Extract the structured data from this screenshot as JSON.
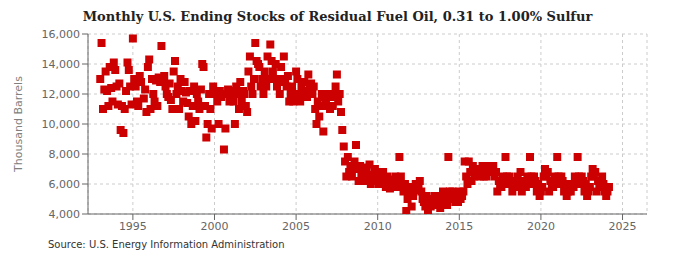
{
  "chart_data": {
    "type": "scatter",
    "title": "Monthly U.S. Ending Stocks of Residual Fuel Oil, 0.31 to 1.00% Sulfur",
    "y_label": "Thousand Barrels",
    "annotations": [
      "Source: U.S. Energy Information Administration"
    ],
    "color": "#cc0000",
    "marker": "square",
    "grid": true,
    "xlim": [
      1992.25,
      2026.5
    ],
    "xticks": [
      1995,
      2000,
      2005,
      2010,
      2015,
      2020,
      2025
    ],
    "ylim": [
      4000,
      16000
    ],
    "yticks": [
      {
        "value": 4000,
        "label": "4,000"
      },
      {
        "value": 6000,
        "label": "6,000"
      },
      {
        "value": 8000,
        "label": "8,000"
      },
      {
        "value": 10000,
        "label": "10,000"
      },
      {
        "value": 12000,
        "label": "12,000"
      },
      {
        "value": 14000,
        "label": "14,000"
      },
      {
        "value": 16000,
        "label": "16,000"
      }
    ],
    "x": [
      1993.0,
      1993.08,
      1993.17,
      1993.25,
      1993.33,
      1993.42,
      1993.5,
      1993.58,
      1993.67,
      1993.75,
      1993.83,
      1993.92,
      1994.0,
      1994.08,
      1994.17,
      1994.25,
      1994.33,
      1994.42,
      1994.5,
      1994.58,
      1994.67,
      1994.75,
      1994.83,
      1994.92,
      1995.0,
      1995.08,
      1995.17,
      1995.25,
      1995.33,
      1995.42,
      1995.5,
      1995.67,
      1995.75,
      1995.83,
      1995.92,
      1996.0,
      1996.08,
      1996.17,
      1996.25,
      1996.33,
      1996.42,
      1996.5,
      1996.58,
      1996.67,
      1996.75,
      1996.83,
      1996.92,
      1997.0,
      1997.08,
      1997.17,
      1997.25,
      1997.33,
      1997.42,
      1997.5,
      1997.58,
      1997.67,
      1997.75,
      1997.83,
      1997.92,
      1998.0,
      1998.08,
      1998.17,
      1998.25,
      1998.33,
      1998.42,
      1998.5,
      1998.58,
      1998.67,
      1998.75,
      1998.83,
      1998.92,
      1999.0,
      1999.08,
      1999.17,
      1999.25,
      1999.33,
      1999.42,
      1999.5,
      1999.58,
      1999.67,
      1999.75,
      1999.83,
      1999.92,
      2000.0,
      2000.08,
      2000.17,
      2000.25,
      2000.33,
      2000.42,
      2000.5,
      2000.58,
      2000.67,
      2000.75,
      2000.83,
      2000.92,
      2001.0,
      2001.08,
      2001.17,
      2001.25,
      2001.33,
      2001.42,
      2001.5,
      2001.58,
      2001.67,
      2001.75,
      2001.83,
      2001.92,
      2002.0,
      2002.08,
      2002.17,
      2002.25,
      2002.33,
      2002.42,
      2002.5,
      2002.58,
      2002.67,
      2002.75,
      2002.83,
      2002.92,
      2003.0,
      2003.08,
      2003.17,
      2003.25,
      2003.33,
      2003.42,
      2003.5,
      2003.58,
      2003.67,
      2003.75,
      2003.83,
      2003.92,
      2004.0,
      2004.08,
      2004.17,
      2004.25,
      2004.33,
      2004.42,
      2004.5,
      2004.58,
      2004.67,
      2004.75,
      2004.83,
      2004.92,
      2005.0,
      2005.08,
      2005.17,
      2005.25,
      2005.33,
      2005.42,
      2005.5,
      2005.58,
      2005.67,
      2005.75,
      2005.83,
      2005.92,
      2006.0,
      2006.08,
      2006.17,
      2006.25,
      2006.33,
      2006.42,
      2006.5,
      2006.58,
      2006.67,
      2006.75,
      2006.83,
      2006.92,
      2007.0,
      2007.08,
      2007.17,
      2007.25,
      2007.33,
      2007.42,
      2007.5,
      2007.58,
      2007.67,
      2007.75,
      2007.83,
      2007.92,
      2008.0,
      2008.08,
      2008.17,
      2008.25,
      2008.33,
      2008.42,
      2008.5,
      2008.58,
      2008.67,
      2008.75,
      2008.83,
      2008.92,
      2009.0,
      2009.08,
      2009.17,
      2009.25,
      2009.33,
      2009.42,
      2009.5,
      2009.58,
      2009.67,
      2009.75,
      2009.83,
      2009.92,
      2010.0,
      2010.08,
      2010.17,
      2010.25,
      2010.33,
      2010.42,
      2010.5,
      2010.58,
      2010.67,
      2010.75,
      2010.83,
      2010.92,
      2011.0,
      2011.08,
      2011.17,
      2011.25,
      2011.33,
      2011.42,
      2011.5,
      2011.58,
      2011.67,
      2011.75,
      2011.83,
      2011.92,
      2012.0,
      2012.08,
      2012.17,
      2012.25,
      2012.33,
      2012.42,
      2012.5,
      2012.58,
      2012.67,
      2012.75,
      2012.83,
      2012.92,
      2013.0,
      2013.08,
      2013.17,
      2013.25,
      2013.33,
      2013.42,
      2013.5,
      2013.58,
      2013.67,
      2013.75,
      2013.83,
      2013.92,
      2014.0,
      2014.08,
      2014.17,
      2014.25,
      2014.33,
      2014.42,
      2014.5,
      2014.58,
      2014.67,
      2014.75,
      2014.83,
      2014.92,
      2015.0,
      2015.08,
      2015.17,
      2015.25,
      2015.33,
      2015.42,
      2015.5,
      2015.58,
      2015.67,
      2015.75,
      2015.83,
      2015.92,
      2016.0,
      2016.08,
      2016.17,
      2016.25,
      2016.33,
      2016.42,
      2016.5,
      2016.58,
      2016.67,
      2016.75,
      2016.83,
      2016.92,
      2017.0,
      2017.08,
      2017.17,
      2017.25,
      2017.33,
      2017.42,
      2017.5,
      2017.58,
      2017.67,
      2017.75,
      2017.83,
      2017.92,
      2018.0,
      2018.08,
      2018.17,
      2018.25,
      2018.33,
      2018.42,
      2018.5,
      2018.58,
      2018.67,
      2018.75,
      2018.83,
      2018.92,
      2019.0,
      2019.08,
      2019.17,
      2019.25,
      2019.33,
      2019.42,
      2019.5,
      2019.58,
      2019.67,
      2019.75,
      2019.83,
      2019.92,
      2020.0,
      2020.08,
      2020.17,
      2020.25,
      2020.33,
      2020.42,
      2020.5,
      2020.58,
      2020.67,
      2020.75,
      2020.83,
      2020.92,
      2021.0,
      2021.08,
      2021.17,
      2021.25,
      2021.33,
      2021.42,
      2021.5,
      2021.58,
      2021.67,
      2021.75,
      2021.83,
      2021.92,
      2022.0,
      2022.08,
      2022.17,
      2022.25,
      2022.33,
      2022.42,
      2022.5,
      2022.58,
      2022.67,
      2022.75,
      2022.83,
      2022.92,
      2023.0,
      2023.08,
      2023.17,
      2023.25,
      2023.33,
      2023.42,
      2023.5,
      2023.58,
      2023.67,
      2023.75,
      2023.83,
      2023.92,
      2024.0,
      2024.08,
      2024.17
    ],
    "values": [
      13000,
      15400,
      11000,
      12300,
      13500,
      12200,
      11200,
      13800,
      12400,
      11500,
      14100,
      13600,
      12500,
      11300,
      12700,
      9600,
      11200,
      9400,
      11000,
      12200,
      14100,
      13600,
      12500,
      11300,
      15700,
      13000,
      12500,
      11500,
      11200,
      13200,
      12800,
      11700,
      12300,
      10800,
      13800,
      14300,
      11000,
      13000,
      12000,
      11500,
      12900,
      11200,
      13100,
      12800,
      15200,
      13000,
      13200,
      12500,
      12000,
      11800,
      12700,
      11600,
      11000,
      13500,
      14200,
      12000,
      12500,
      11000,
      13000,
      12200,
      11500,
      12800,
      12100,
      11400,
      10500,
      12200,
      10000,
      11200,
      12500,
      10200,
      12000,
      11500,
      11000,
      12300,
      14000,
      13800,
      11200,
      9100,
      10000,
      12000,
      11000,
      9700,
      12500,
      12100,
      12000,
      11500,
      10000,
      12200,
      11800,
      12000,
      8300,
      9700,
      12000,
      12300,
      11500,
      12000,
      12200,
      11500,
      10000,
      12500,
      12000,
      11000,
      12800,
      11500,
      12200,
      12000,
      11200,
      10800,
      13500,
      14500,
      12500,
      12000,
      13000,
      15400,
      14200,
      14000,
      13800,
      12500,
      13000,
      12000,
      13500,
      12500,
      14500,
      13000,
      15300,
      14200,
      13500,
      13000,
      14000,
      12500,
      13000,
      12000,
      13800,
      12800,
      14500,
      13000,
      12500,
      13200,
      11500,
      12000,
      12500,
      11500,
      12000,
      13500,
      13000,
      12000,
      11500,
      12500,
      12000,
      12800,
      12200,
      11800,
      13300,
      12500,
      12700,
      12000,
      12500,
      11000,
      10000,
      11500,
      10500,
      11200,
      12000,
      9500,
      11800,
      11500,
      11200,
      12000,
      11000,
      11800,
      11200,
      12000,
      12500,
      13300,
      11500,
      12000,
      10800,
      9600,
      8500,
      7500,
      6500,
      7800,
      6800,
      7200,
      6500,
      7000,
      7500,
      8600,
      7000,
      6200,
      7200,
      6500,
      6800,
      7100,
      6200,
      6800,
      6500,
      7300,
      6000,
      6600,
      6200,
      7000,
      6400,
      6800,
      6000,
      6500,
      6200,
      6800,
      6000,
      5800,
      6500,
      6000,
      5700,
      5800,
      6300,
      6000,
      6500,
      5800,
      6200,
      7800,
      6500,
      6000,
      5500,
      6000,
      4200,
      5000,
      5800,
      5500,
      4500,
      5200,
      5800,
      6000,
      5600,
      5800,
      6200,
      5500,
      5000,
      4800,
      4500,
      5200,
      4100,
      4800,
      4500,
      5000,
      4800,
      5200,
      4600,
      4800,
      5200,
      4400,
      5000,
      5500,
      4800,
      5200,
      4600,
      7800,
      5500,
      5000,
      5500,
      5000,
      4800,
      5200,
      4800,
      5500,
      5000,
      5200,
      5500,
      7500,
      6500,
      6000,
      7500,
      6800,
      6200,
      7200,
      6500,
      7000,
      6800,
      7000,
      6500,
      6800,
      7200,
      6500,
      7000,
      6500,
      6800,
      7200,
      7000,
      6800,
      7200,
      6500,
      6800,
      5500,
      6200,
      6000,
      5800,
      6500,
      6000,
      7800,
      6500,
      6000,
      6500,
      6200,
      5500,
      6200,
      6000,
      5800,
      6500,
      6000,
      6800,
      5500,
      6200,
      6000,
      5800,
      6500,
      6000,
      7800,
      6500,
      6000,
      6500,
      6200,
      5500,
      6000,
      5200,
      5500,
      5800,
      6500,
      7000,
      6500,
      6800,
      5500,
      6200,
      6000,
      5800,
      6500,
      6000,
      7800,
      6500,
      6000,
      6500,
      6200,
      5500,
      6000,
      5200,
      5500,
      5800,
      5500,
      6000,
      5800,
      6500,
      6000,
      7800,
      6500,
      6000,
      6500,
      6200,
      5500,
      6000,
      5200,
      5500,
      5800,
      6500,
      7000,
      6500,
      6800,
      5500,
      6200,
      6000,
      5800,
      6500,
      6000,
      5500,
      5200,
      5500,
      5800
    ]
  }
}
